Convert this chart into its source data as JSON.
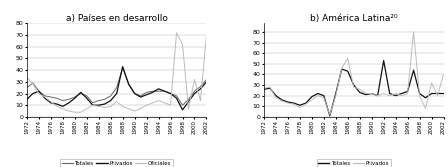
{
  "title_a": "a) Países en desarrollo",
  "title_b": "b) América Latina²⁰",
  "years": [
    1972,
    1973,
    1974,
    1975,
    1976,
    1977,
    1978,
    1979,
    1980,
    1981,
    1982,
    1983,
    1984,
    1985,
    1986,
    1987,
    1988,
    1989,
    1990,
    1991,
    1992,
    1993,
    1994,
    1995,
    1996,
    1997,
    1998,
    1999,
    2000,
    2001,
    2002
  ],
  "panel_a": {
    "totales": [
      25,
      29,
      22,
      18,
      17,
      16,
      14,
      15,
      17,
      20,
      18,
      12,
      14,
      15,
      18,
      25,
      42,
      28,
      20,
      18,
      21,
      22,
      22,
      22,
      20,
      18,
      10,
      15,
      22,
      26,
      32
    ],
    "privados": [
      15,
      20,
      22,
      16,
      12,
      11,
      9,
      12,
      16,
      21,
      16,
      10,
      10,
      11,
      14,
      20,
      43,
      28,
      20,
      17,
      19,
      21,
      24,
      22,
      20,
      16,
      6,
      13,
      20,
      24,
      30
    ],
    "oficiales": [
      34,
      28,
      20,
      17,
      13,
      9,
      7,
      5,
      4,
      4,
      7,
      10,
      9,
      8,
      9,
      13,
      9,
      7,
      5,
      7,
      10,
      12,
      14,
      12,
      10,
      72,
      62,
      7,
      32,
      14,
      70
    ]
  },
  "panel_b": {
    "totales": [
      26,
      27,
      20,
      16,
      14,
      13,
      11,
      13,
      19,
      22,
      20,
      1,
      22,
      45,
      43,
      30,
      23,
      21,
      22,
      20,
      53,
      22,
      20,
      22,
      24,
      44,
      22,
      18,
      22,
      22,
      22
    ],
    "privados": [
      27,
      28,
      18,
      15,
      13,
      12,
      9,
      12,
      16,
      20,
      18,
      2,
      20,
      46,
      55,
      28,
      26,
      22,
      22,
      20,
      22,
      20,
      22,
      20,
      22,
      80,
      20,
      8,
      32,
      20,
      40
    ]
  },
  "ylim_a": [
    0,
    80
  ],
  "ylim_b": [
    0,
    88
  ],
  "yticks_a": [
    0,
    10,
    20,
    30,
    40,
    50,
    60,
    70,
    80
  ],
  "yticks_b": [
    0,
    10,
    20,
    30,
    40,
    50,
    60,
    70,
    80
  ],
  "color_totales": "#666666",
  "color_privados": "#111111",
  "color_oficiales": "#bbbbbb",
  "legend_a": [
    "Totales",
    "Privados",
    "Oficiales"
  ],
  "legend_b": [
    "Totales",
    "Privados"
  ],
  "x_tick_years": [
    1972,
    1974,
    1976,
    1978,
    1980,
    1982,
    1984,
    1986,
    1988,
    1990,
    1992,
    1994,
    1996,
    1998,
    2000,
    2002
  ]
}
